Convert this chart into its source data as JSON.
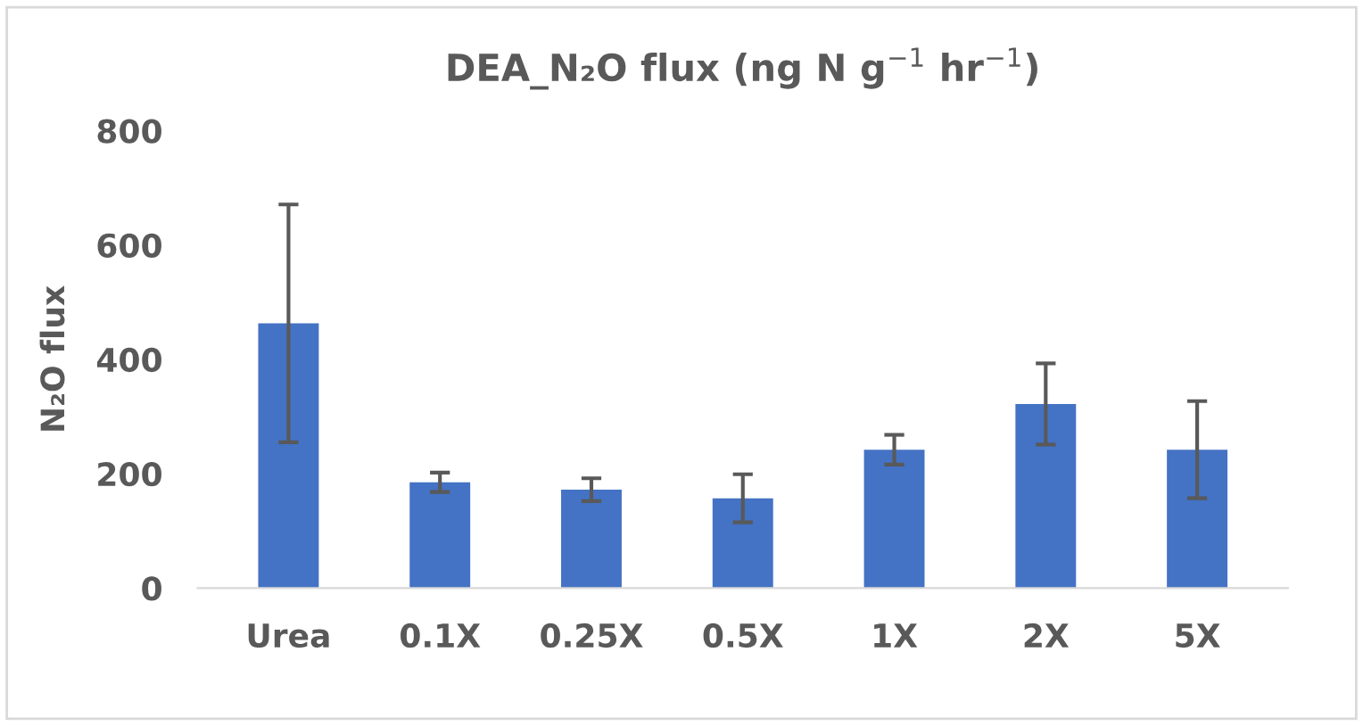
{
  "chart_data": {
    "type": "bar",
    "title": "DEA_N₂O flux (ng N g$^{−1}$ hr$^{−1}$)",
    "ylabel": "N₂O flux",
    "categories": [
      "Urea",
      "0.1X",
      "0.25X",
      "0.5X",
      "1X",
      "2X",
      "5X"
    ],
    "values": [
      463,
      185,
      172,
      157,
      242,
      322,
      242
    ],
    "errors": [
      208,
      17,
      20,
      42,
      26,
      71,
      85
    ],
    "color": "#4472c4",
    "ylim": [
      0,
      800
    ],
    "yticks": [
      0,
      200,
      400,
      600,
      800
    ],
    "grid": false,
    "legend": false
  }
}
